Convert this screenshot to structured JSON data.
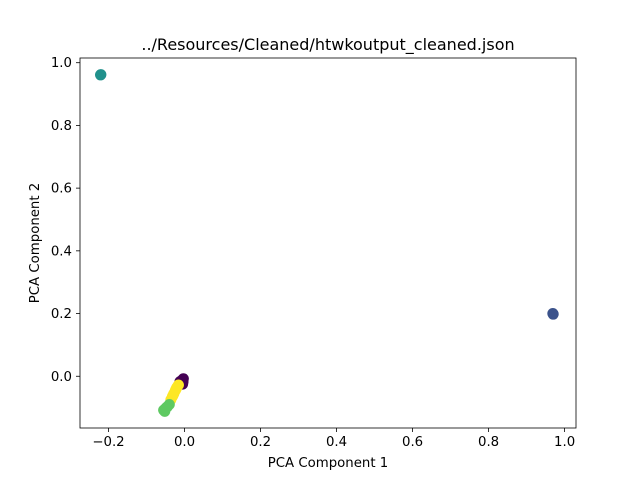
{
  "chart_data": {
    "type": "scatter",
    "title": "../Resources/Cleaned/htwkoutput_cleaned.json",
    "xlabel": "PCA Component 1",
    "ylabel": "PCA Component 2",
    "xlim": [
      -0.275,
      1.03
    ],
    "ylim": [
      -0.165,
      1.015
    ],
    "x_ticks": [
      -0.2,
      0.0,
      0.2,
      0.4,
      0.6,
      0.8,
      1.0
    ],
    "x_tick_labels": [
      "−0.2",
      "0.0",
      "0.2",
      "0.4",
      "0.6",
      "0.8",
      "1.0"
    ],
    "y_ticks": [
      0.0,
      0.2,
      0.4,
      0.6,
      0.8,
      1.0
    ],
    "y_tick_labels": [
      "0.0",
      "0.2",
      "0.4",
      "0.6",
      "0.8",
      "1.0"
    ],
    "grid": false,
    "colormap": "viridis",
    "points": [
      {
        "x": -0.22,
        "y": 0.962,
        "color": "#21918c"
      },
      {
        "x": -0.221,
        "y": 0.961,
        "color": "#21918c"
      },
      {
        "x": 0.97,
        "y": 0.198,
        "color": "#3b528b"
      },
      {
        "x": 0.969,
        "y": 0.2,
        "color": "#3b528b"
      },
      {
        "x": -0.006,
        "y": -0.012,
        "color": "#440154"
      },
      {
        "x": -0.004,
        "y": -0.018,
        "color": "#440154"
      },
      {
        "x": -0.008,
        "y": -0.015,
        "color": "#440154"
      },
      {
        "x": -0.01,
        "y": -0.02,
        "color": "#440154"
      },
      {
        "x": -0.012,
        "y": -0.017,
        "color": "#440154"
      },
      {
        "x": -0.005,
        "y": -0.025,
        "color": "#440154"
      },
      {
        "x": -0.014,
        "y": -0.025,
        "color": "#440154"
      },
      {
        "x": -0.003,
        "y": -0.008,
        "color": "#440154"
      },
      {
        "x": -0.016,
        "y": -0.028,
        "color": "#fde725"
      },
      {
        "x": -0.02,
        "y": -0.035,
        "color": "#fde725"
      },
      {
        "x": -0.024,
        "y": -0.045,
        "color": "#fde725"
      },
      {
        "x": -0.028,
        "y": -0.055,
        "color": "#fde725"
      },
      {
        "x": -0.032,
        "y": -0.065,
        "color": "#fde725"
      },
      {
        "x": -0.036,
        "y": -0.075,
        "color": "#fde725"
      },
      {
        "x": -0.03,
        "y": -0.06,
        "color": "#fde725"
      },
      {
        "x": -0.022,
        "y": -0.04,
        "color": "#fde725"
      },
      {
        "x": -0.04,
        "y": -0.09,
        "color": "#5ec962"
      },
      {
        "x": -0.045,
        "y": -0.097,
        "color": "#5ec962"
      },
      {
        "x": -0.05,
        "y": -0.103,
        "color": "#5ec962"
      },
      {
        "x": -0.055,
        "y": -0.108,
        "color": "#5ec962"
      },
      {
        "x": -0.052,
        "y": -0.112,
        "color": "#5ec962"
      },
      {
        "x": -0.048,
        "y": -0.1,
        "color": "#5ec962"
      }
    ]
  }
}
